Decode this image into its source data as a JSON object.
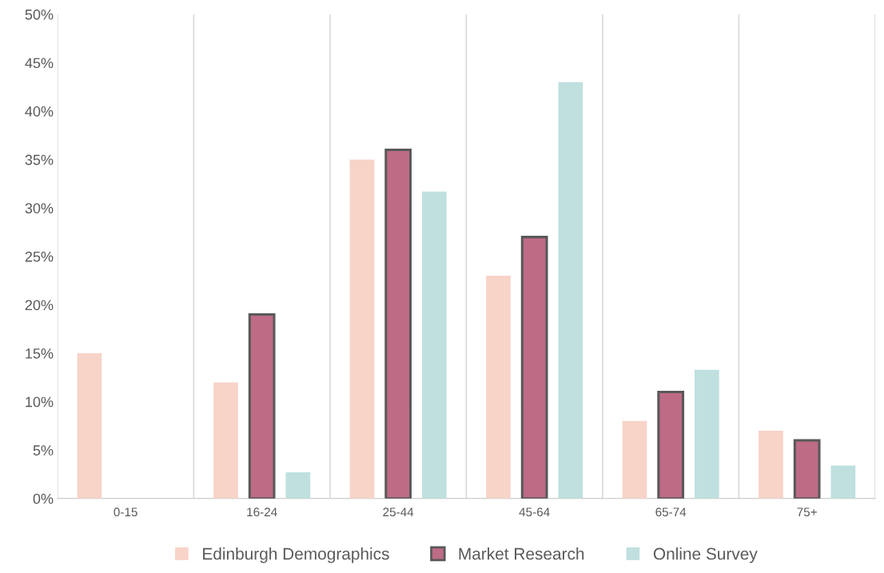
{
  "chart_data": {
    "type": "bar",
    "categories": [
      "0-15",
      "16-24",
      "25-44",
      "45-64",
      "65-74",
      "75+"
    ],
    "series": [
      {
        "name": "Edinburgh Demographics",
        "color": "#f8d3c8",
        "values": [
          15,
          12,
          35,
          23,
          8,
          7
        ]
      },
      {
        "name": "Market Research",
        "color": "#be6b85",
        "values": [
          null,
          19,
          36,
          27,
          11,
          6
        ]
      },
      {
        "name": "Online Survey",
        "color": "#bfe0df",
        "values": [
          null,
          2.7,
          31.7,
          43,
          13.3,
          3.4
        ]
      }
    ],
    "ylim": [
      0,
      50
    ],
    "yticks": [
      {
        "value": 0,
        "label": "0%"
      },
      {
        "value": 5,
        "label": "5%"
      },
      {
        "value": 10,
        "label": "10%"
      },
      {
        "value": 15,
        "label": "15%"
      },
      {
        "value": 20,
        "label": "20%"
      },
      {
        "value": 25,
        "label": "25%"
      },
      {
        "value": 30,
        "label": "30%"
      },
      {
        "value": 35,
        "label": "35%"
      },
      {
        "value": 40,
        "label": "40%"
      },
      {
        "value": 45,
        "label": "45%"
      },
      {
        "value": 50,
        "label": "50%"
      }
    ],
    "grid": "x",
    "legend": "bottom"
  }
}
